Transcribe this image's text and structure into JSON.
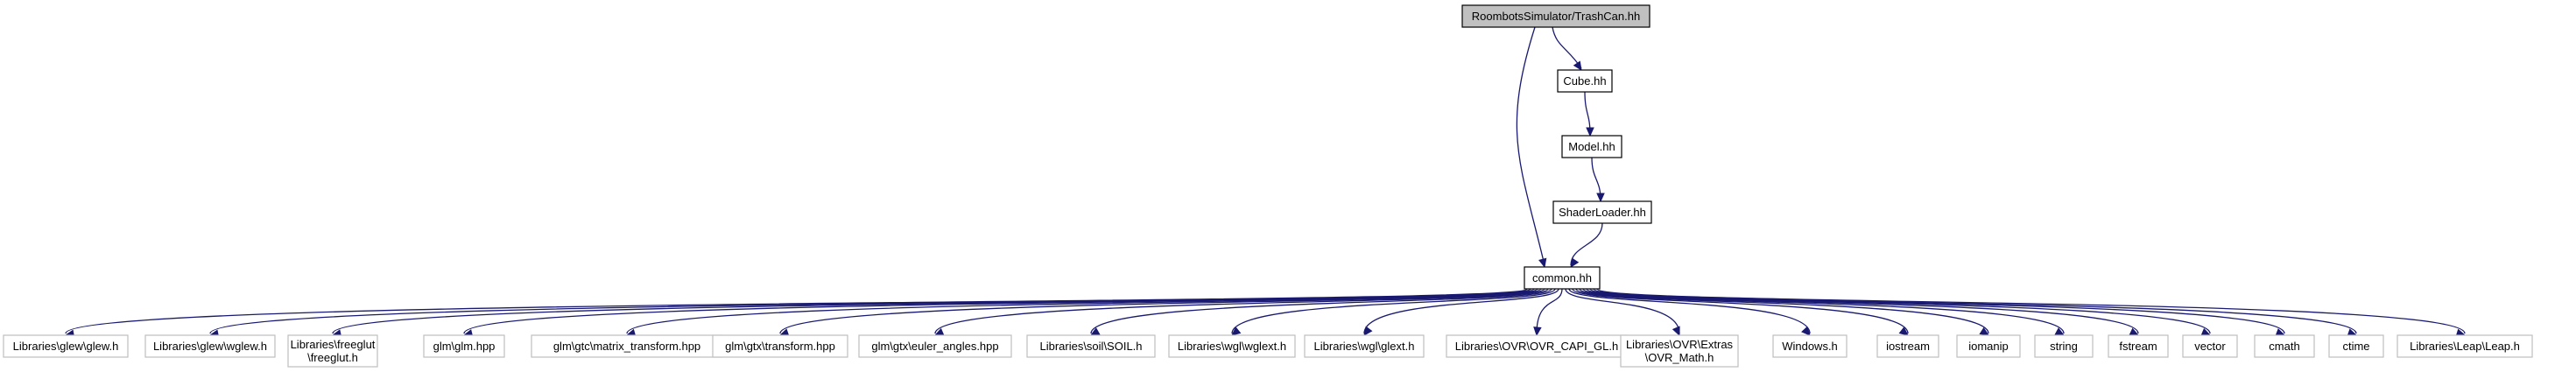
{
  "graph": {
    "root": "RoombotsSimulator/TrashCan.hh",
    "chain": [
      "Cube.hh",
      "Model.hh",
      "ShaderLoader.hh",
      "common.hh"
    ],
    "includes": [
      [
        "Libraries\\glew\\glew.h"
      ],
      [
        "Libraries\\glew\\wglew.h"
      ],
      [
        "Libraries\\freeglut",
        "\\freeglut.h"
      ],
      [
        "glm\\glm.hpp"
      ],
      [
        "glm\\gtc\\matrix_transform.hpp"
      ],
      [
        "glm\\gtx\\transform.hpp"
      ],
      [
        "glm\\gtx\\euler_angles.hpp"
      ],
      [
        "Libraries\\soil\\SOIL.h"
      ],
      [
        "Libraries\\wgl\\wglext.h"
      ],
      [
        "Libraries\\wgl\\glext.h"
      ],
      [
        "Libraries\\OVR\\OVR_CAPI_GL.h"
      ],
      [
        "Libraries\\OVR\\Extras",
        "\\OVR_Math.h"
      ],
      [
        "Windows.h"
      ],
      [
        "iostream"
      ],
      [
        "iomanip"
      ],
      [
        "string"
      ],
      [
        "fstream"
      ],
      [
        "vector"
      ],
      [
        "cmath"
      ],
      [
        "ctime"
      ],
      [
        "Libraries\\Leap\\Leap.h"
      ]
    ]
  },
  "colors": {
    "edge": "#191970",
    "root_fill": "#c0c0c0",
    "node_fill": "#ffffff",
    "node_border": "#000000",
    "leaf_border": "#bfbfbf"
  }
}
